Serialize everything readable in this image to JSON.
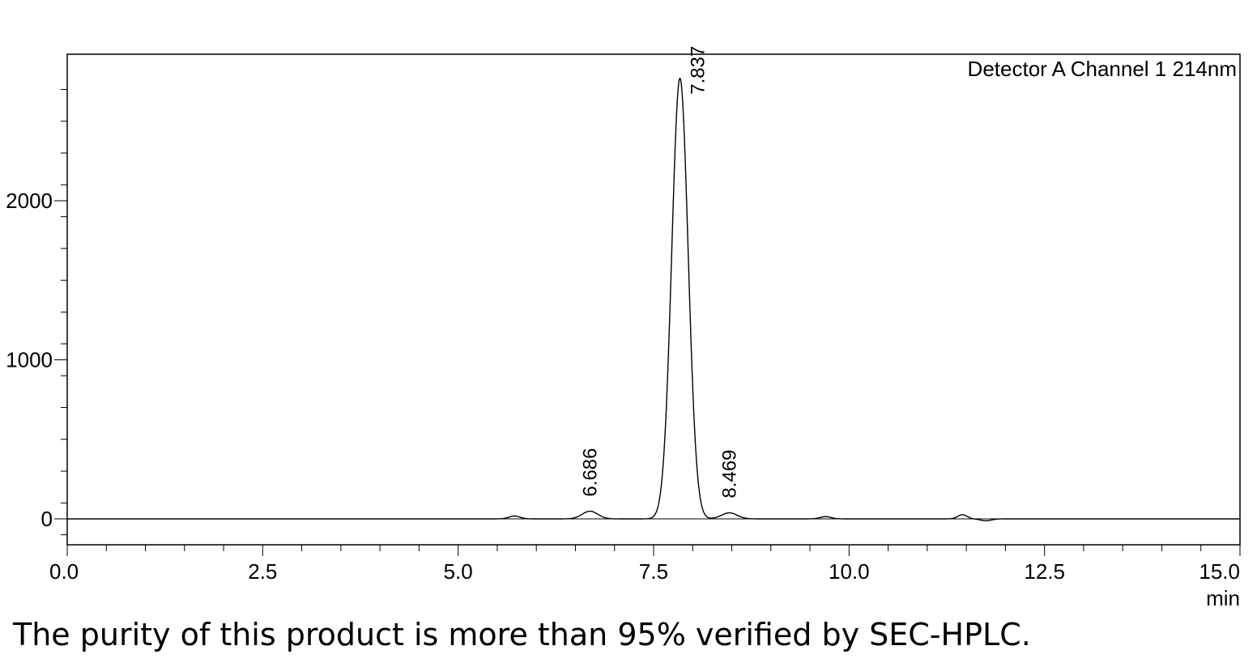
{
  "chart_data": {
    "type": "line",
    "channel_label": "Detector A Channel 1 214nm",
    "xlabel": "min",
    "ylabel": "",
    "xlim": [
      0.0,
      15.0
    ],
    "ylim": [
      -160,
      2920
    ],
    "x_ticks": [
      "0.0",
      "2.5",
      "5.0",
      "7.5",
      "10.0",
      "12.5",
      "15.0"
    ],
    "x_tick_values": [
      0.0,
      2.5,
      5.0,
      7.5,
      10.0,
      12.5,
      15.0
    ],
    "y_ticks": [
      "0",
      "1000",
      "2000"
    ],
    "y_tick_values": [
      0,
      1000,
      2000
    ],
    "grid": false,
    "baseline": 0,
    "peaks": [
      {
        "rt": 5.72,
        "height": 18,
        "sigma": 0.07,
        "label": ""
      },
      {
        "rt": 6.686,
        "height": 48,
        "sigma": 0.1,
        "label": "6.686"
      },
      {
        "rt": 7.837,
        "height": 2770,
        "sigma": 0.105,
        "label": "7.837"
      },
      {
        "rt": 8.469,
        "height": 38,
        "sigma": 0.1,
        "label": "8.469"
      },
      {
        "rt": 9.7,
        "height": 14,
        "sigma": 0.07,
        "label": ""
      },
      {
        "rt": 11.45,
        "height": 26,
        "sigma": 0.06,
        "label": ""
      },
      {
        "rt": 11.75,
        "height": -12,
        "sigma": 0.07,
        "label": ""
      }
    ]
  },
  "caption": "The purity of this product is more than 95% verified by SEC-HPLC."
}
